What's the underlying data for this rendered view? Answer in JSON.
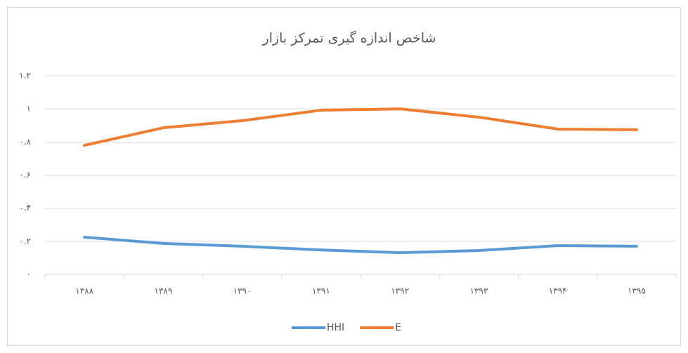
{
  "chart_data": {
    "type": "line",
    "title": "شاخص اندازه گیری تمرکز بازار",
    "categories": [
      "۱۳۸۸",
      "۱۳۸۹",
      "۱۳۹۰",
      "۱۳۹۱",
      "۱۳۹۲",
      "۱۳۹۳",
      "۱۳۹۴",
      "۱۳۹۵"
    ],
    "series": [
      {
        "name": "HHI",
        "color": "#5b9bd5",
        "values": [
          0.225,
          0.187,
          0.17,
          0.148,
          0.131,
          0.144,
          0.174,
          0.17
        ]
      },
      {
        "name": "E",
        "color": "#ed7d31",
        "values": [
          0.78,
          0.886,
          0.929,
          0.992,
          1.0,
          0.95,
          0.878,
          0.874
        ]
      }
    ],
    "ylim": [
      0,
      1.2
    ],
    "yticks": [
      {
        "value": 0,
        "label": "۰"
      },
      {
        "value": 0.2,
        "label": "۰.۲"
      },
      {
        "value": 0.4,
        "label": "۰.۴"
      },
      {
        "value": 0.6,
        "label": "۰.۶"
      },
      {
        "value": 0.8,
        "label": "۰.۸"
      },
      {
        "value": 1,
        "label": "۱"
      },
      {
        "value": 1.2,
        "label": "۱.۲"
      }
    ],
    "grid": true,
    "legend": "bottom"
  }
}
